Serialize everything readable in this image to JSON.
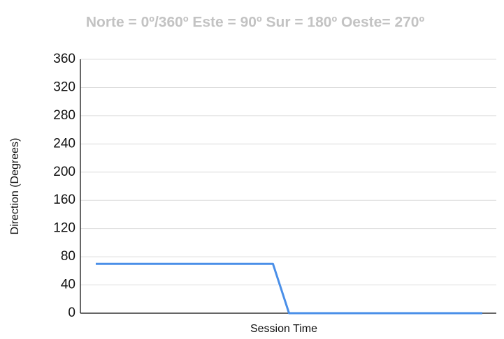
{
  "chart_data": {
    "type": "line",
    "title": "Norte = 0º/360º Este = 90º Sur = 180º Oeste= 270º",
    "x_label": "Session Time",
    "y_label": "Direction (Degrees)",
    "categories": [
      null,
      null,
      null,
      null,
      null,
      null,
      null,
      null,
      null,
      null,
      null,
      null,
      null,
      null,
      null,
      null,
      null,
      null,
      null,
      null,
      null,
      null,
      null,
      null,
      null
    ],
    "series": [
      {
        "name": "Direction",
        "color": "#4a8fe8",
        "values": [
          70,
          70,
          70,
          70,
          70,
          70,
          70,
          70,
          70,
          70,
          70,
          70,
          0,
          0,
          0,
          0,
          0,
          0,
          0,
          0,
          0,
          0,
          0,
          0,
          0
        ]
      }
    ],
    "ylim": [
      0,
      360
    ],
    "yticks": [
      0,
      40,
      80,
      120,
      160,
      200,
      240,
      280,
      320,
      360
    ],
    "grid": true
  }
}
